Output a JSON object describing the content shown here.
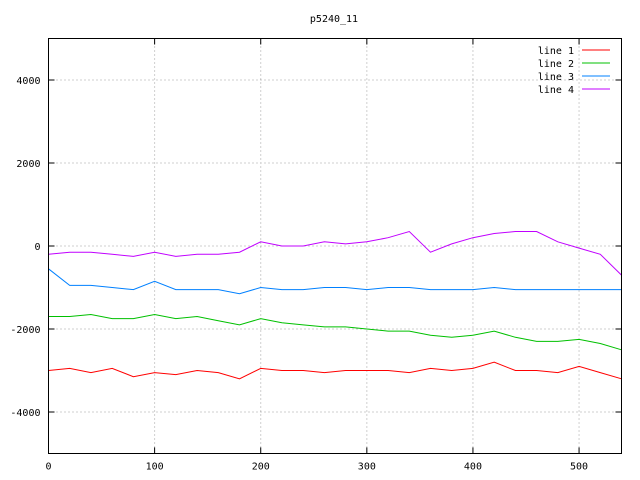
{
  "chart_data": {
    "type": "line",
    "title": "p5240_11",
    "xlabel": "",
    "ylabel": "",
    "xlim": [
      0,
      540
    ],
    "ylim": [
      -5000,
      5000
    ],
    "x_ticks": [
      "0",
      "100",
      "200",
      "300",
      "400",
      "500"
    ],
    "y_ticks": [
      "-4000",
      "-2000",
      "0",
      "2000",
      "4000"
    ],
    "grid": true,
    "legend_position": "top-right",
    "x": [
      0,
      20,
      40,
      60,
      80,
      100,
      120,
      140,
      160,
      180,
      200,
      220,
      240,
      260,
      280,
      300,
      320,
      340,
      360,
      380,
      400,
      420,
      440,
      460,
      480,
      500,
      520,
      540
    ],
    "series": [
      {
        "name": "line 1",
        "color": "#ff0000",
        "values": [
          -3000,
          -2950,
          -3050,
          -2950,
          -3150,
          -3050,
          -3100,
          -3000,
          -3050,
          -3200,
          -2950,
          -3000,
          -3000,
          -3050,
          -3000,
          -3000,
          -3000,
          -3050,
          -2950,
          -3000,
          -2950,
          -2800,
          -3000,
          -3000,
          -3050,
          -2900,
          -3050,
          -3200
        ]
      },
      {
        "name": "line 2",
        "color": "#00c000",
        "values": [
          -1700,
          -1700,
          -1650,
          -1750,
          -1750,
          -1650,
          -1750,
          -1700,
          -1800,
          -1900,
          -1750,
          -1850,
          -1900,
          -1950,
          -1950,
          -2000,
          -2050,
          -2050,
          -2150,
          -2200,
          -2150,
          -2050,
          -2200,
          -2300,
          -2300,
          -2250,
          -2350,
          -2500
        ]
      },
      {
        "name": "line 3",
        "color": "#0080ff",
        "values": [
          -550,
          -950,
          -950,
          -1000,
          -1050,
          -850,
          -1050,
          -1050,
          -1050,
          -1150,
          -1000,
          -1050,
          -1050,
          -1000,
          -1000,
          -1050,
          -1000,
          -1000,
          -1050,
          -1050,
          -1050,
          -1000,
          -1050,
          -1050,
          -1050,
          -1050,
          -1050,
          -1050
        ]
      },
      {
        "name": "line 4",
        "color": "#c000ff",
        "values": [
          -200,
          -150,
          -150,
          -200,
          -250,
          -150,
          -250,
          -200,
          -200,
          -150,
          100,
          0,
          0,
          100,
          50,
          100,
          200,
          350,
          -150,
          50,
          200,
          300,
          350,
          350,
          100,
          -50,
          -200,
          -700
        ]
      }
    ]
  }
}
